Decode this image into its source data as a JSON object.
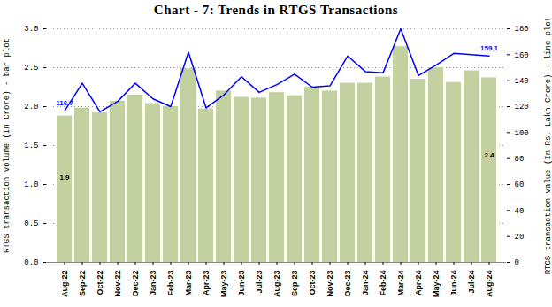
{
  "chart_data": {
    "type": "bar",
    "title": "Chart - 7: Trends in RTGS Transactions",
    "categories": [
      "Aug-22",
      "Sep-22",
      "Oct-22",
      "Nov-22",
      "Dec-22",
      "Jan-23",
      "Feb-23",
      "Mar-23",
      "Apr-23",
      "May-23",
      "Jun-23",
      "Jul-23",
      "Aug-23",
      "Sep-23",
      "Oct-23",
      "Nov-23",
      "Dec-23",
      "Jan-24",
      "Feb-24",
      "Mar-24",
      "Apr-24",
      "May-24",
      "Jun-24",
      "Jul-24",
      "Aug-24"
    ],
    "ylabel": "RTGS transaction volume (In Crore) - bar plot",
    "y2label": "RTGS transaction value (In Rs. Lakh Crore) - line plot",
    "series": [
      {
        "type": "bar",
        "color": "#c3d09f",
        "axis": "y",
        "values": [
          1.88,
          1.98,
          1.92,
          2.07,
          2.15,
          2.04,
          2.0,
          2.49,
          1.97,
          2.2,
          2.12,
          2.11,
          2.18,
          2.14,
          2.25,
          2.2,
          2.3,
          2.3,
          2.38,
          2.77,
          2.35,
          2.5,
          2.31,
          2.46,
          2.37
        ],
        "value_labels": [
          "1.9",
          null,
          null,
          null,
          null,
          null,
          null,
          null,
          null,
          null,
          null,
          null,
          null,
          null,
          null,
          null,
          null,
          null,
          null,
          null,
          null,
          null,
          null,
          null,
          "2.4"
        ]
      },
      {
        "type": "line",
        "color": "#0000ff",
        "axis": "y2",
        "values": [
          116.7,
          138,
          116,
          124,
          138,
          126,
          120,
          162,
          119,
          129,
          143,
          131,
          137,
          145,
          135,
          136,
          159,
          147,
          146,
          180,
          144,
          152,
          161,
          160,
          159.1
        ],
        "value_labels": [
          "116.7",
          null,
          null,
          null,
          null,
          null,
          null,
          null,
          null,
          null,
          null,
          null,
          null,
          null,
          null,
          null,
          null,
          null,
          null,
          null,
          null,
          null,
          null,
          null,
          "159.1"
        ]
      }
    ],
    "ylim": [
      0,
      3
    ],
    "yticks": [
      {
        "value": 0,
        "label": "0.0"
      },
      0.5,
      {
        "value": 1,
        "label": "1.0"
      },
      1.5,
      {
        "value": 2,
        "label": "2.0"
      },
      2.5,
      {
        "value": 3,
        "label": "3.0"
      }
    ],
    "y2lim": [
      0,
      180
    ],
    "y2ticks": [
      0,
      20,
      40,
      60,
      80,
      100,
      120,
      140,
      160,
      180
    ],
    "grid": true,
    "data_labels": true
  }
}
